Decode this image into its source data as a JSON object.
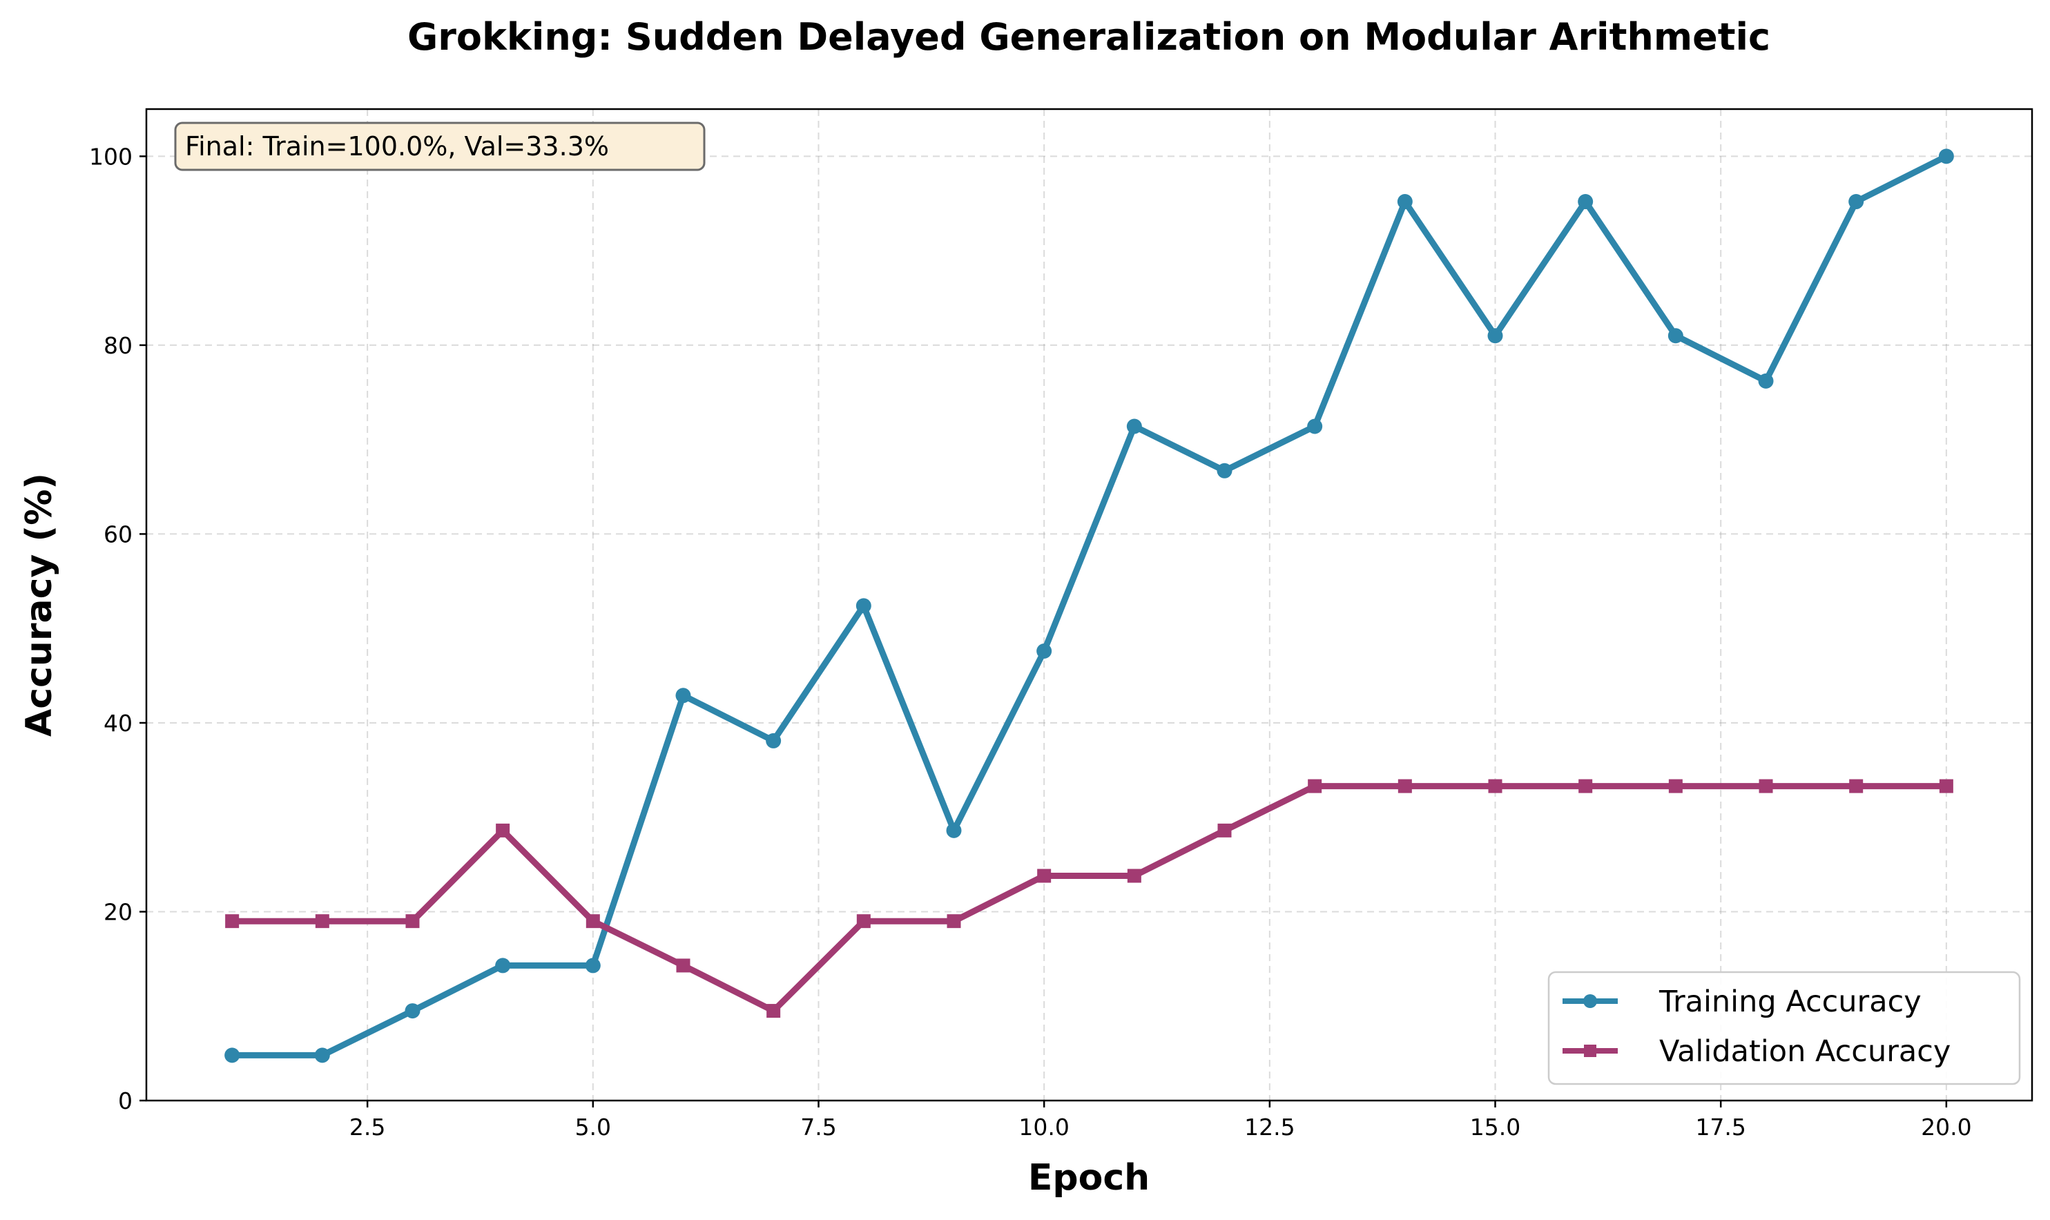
{
  "chart_data": {
    "type": "line",
    "title": "Grokking: Sudden Delayed Generalization on Modular Arithmetic",
    "xlabel": "Epoch",
    "ylabel": "Accuracy (%)",
    "xlim": [
      0.05,
      20.95
    ],
    "ylim": [
      0,
      105
    ],
    "xticks": [
      2.5,
      5.0,
      7.5,
      10.0,
      12.5,
      15.0,
      17.5,
      20.0
    ],
    "xtick_labels": [
      "2.5",
      "5.0",
      "7.5",
      "10.0",
      "12.5",
      "15.0",
      "17.5",
      "20.0"
    ],
    "yticks": [
      0,
      20,
      40,
      60,
      80,
      100
    ],
    "ytick_labels": [
      "0",
      "20",
      "40",
      "60",
      "80",
      "100"
    ],
    "grid": true,
    "legend_position": "lower-right",
    "annotation": "Final: Train=100.0%, Val=33.3%",
    "x": [
      1,
      2,
      3,
      4,
      5,
      6,
      7,
      8,
      9,
      10,
      11,
      12,
      13,
      14,
      15,
      16,
      17,
      18,
      19,
      20
    ],
    "series": [
      {
        "name": "Training Accuracy",
        "color": "#2E86AB",
        "marker": "circle",
        "values": [
          4.8,
          4.8,
          9.5,
          14.3,
          14.3,
          42.9,
          38.1,
          52.4,
          28.6,
          47.6,
          71.4,
          66.7,
          71.4,
          95.2,
          81.0,
          95.2,
          81.0,
          76.2,
          95.2,
          100.0
        ]
      },
      {
        "name": "Validation Accuracy",
        "color": "#A23B72",
        "marker": "square",
        "values": [
          19.0,
          19.0,
          19.0,
          28.6,
          19.0,
          14.3,
          9.5,
          19.0,
          19.0,
          23.8,
          23.8,
          28.6,
          33.3,
          33.3,
          33.3,
          33.3,
          33.3,
          33.3,
          33.3,
          33.3
        ]
      }
    ]
  }
}
